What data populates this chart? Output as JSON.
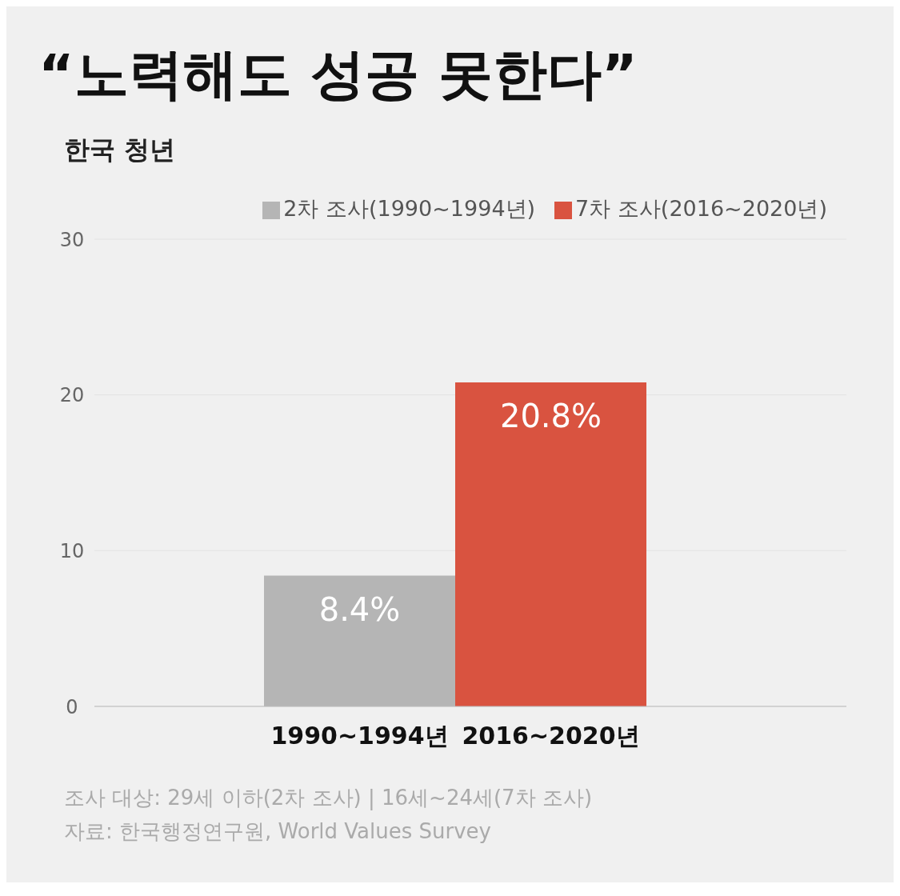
{
  "chart_data": {
    "type": "bar",
    "title": "“노력해도 성공 못한다”",
    "subtitle": "한국 청년",
    "categories": [
      "1990~1994년",
      "2016~2020년"
    ],
    "series": [
      {
        "name": "2차 조사(1990~1994년)",
        "color": "#b5b5b5",
        "values": [
          8.4,
          null
        ],
        "value_labels": [
          "8.4%",
          null
        ]
      },
      {
        "name": "7차 조사(2016~2020년)",
        "color": "#d95340",
        "values": [
          null,
          20.8
        ],
        "value_labels": [
          null,
          "20.8%"
        ]
      }
    ],
    "stacked": true,
    "ylim": [
      0,
      30
    ],
    "yticks": [
      0,
      10,
      20,
      30
    ],
    "grid": "y",
    "legend": "top right",
    "annotations": [
      "조사 대상: 29세 이하(2차 조사) | 16세~24세(7차 조사)",
      "자료: 한국행정연구원, World Values Survey"
    ]
  }
}
